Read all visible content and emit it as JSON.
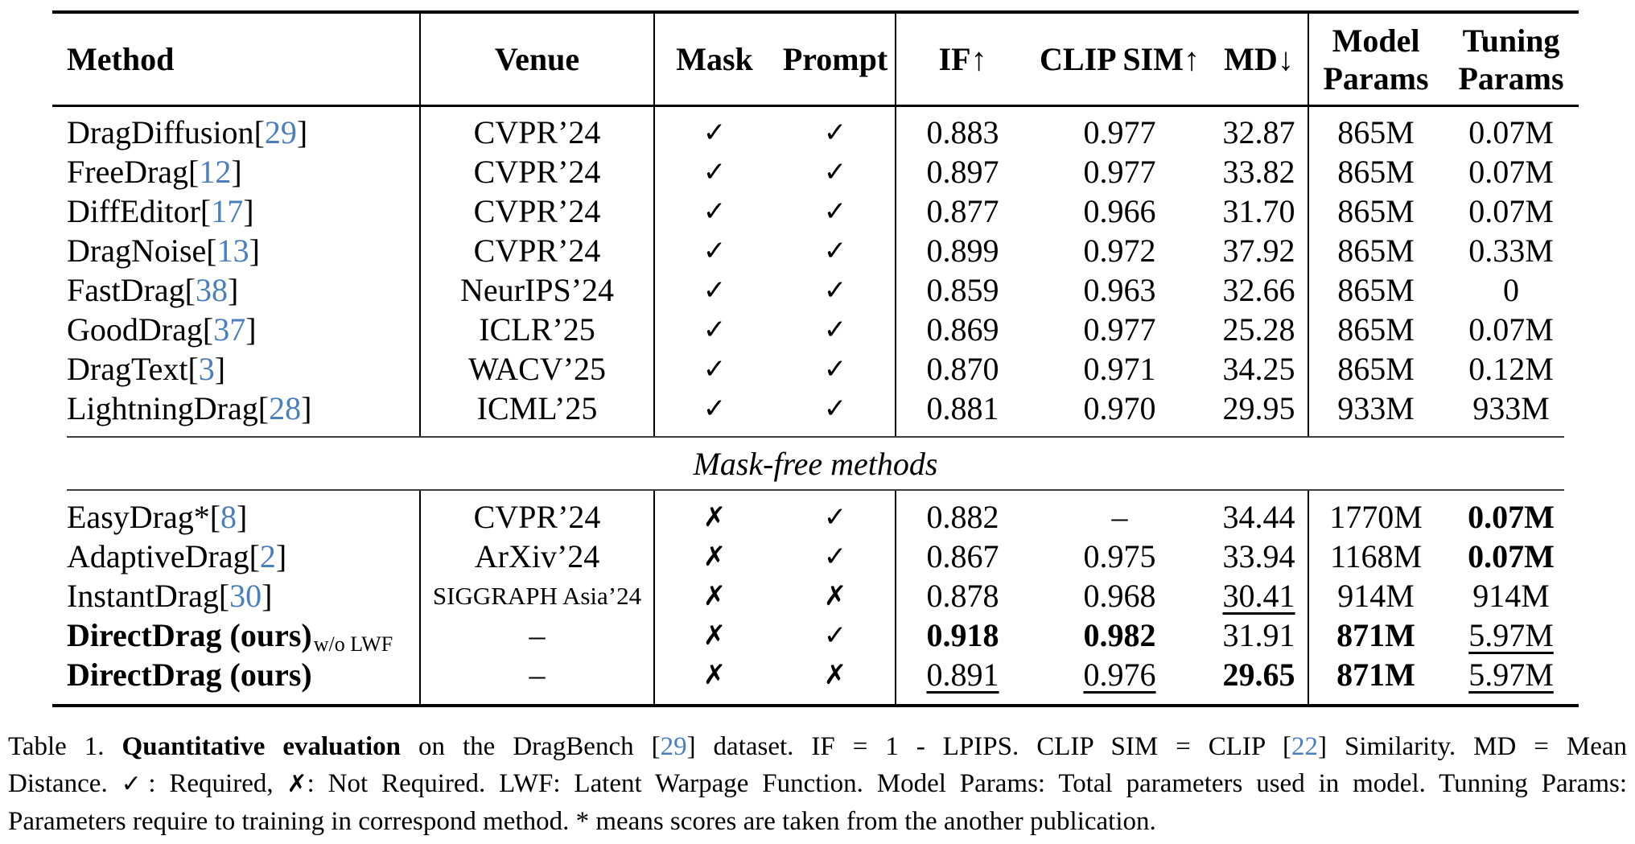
{
  "colors": {
    "citation_blue": "#4a7ebd",
    "text": "#000000",
    "rule": "#000000"
  },
  "table": {
    "header": {
      "method": "Method",
      "venue": "Venue",
      "mask": "Mask",
      "prompt": "Prompt",
      "if": "IF↑",
      "clip_sim": "CLIP SIM↑",
      "md": "MD↓",
      "model_line1": "Model",
      "model_line2": "Params",
      "tuning_line1": "Tuning",
      "tuning_line2": "Params"
    },
    "icons": {
      "check": "✓",
      "cross": "✗"
    },
    "section_label": "Mask-free methods",
    "rows_top": [
      {
        "method": "DragDiffusion",
        "cite": "29",
        "venue": "CVPR’24",
        "mask": "yes",
        "prompt": "yes",
        "metrics": [
          {
            "v": "0.883"
          },
          {
            "v": "0.977"
          },
          {
            "v": "32.87"
          },
          {
            "v": "865M"
          },
          {
            "v": "0.07M"
          }
        ]
      },
      {
        "method": "FreeDrag",
        "cite": "12",
        "venue": "CVPR’24",
        "mask": "yes",
        "prompt": "yes",
        "metrics": [
          {
            "v": "0.897"
          },
          {
            "v": "0.977"
          },
          {
            "v": "33.82"
          },
          {
            "v": "865M"
          },
          {
            "v": "0.07M"
          }
        ]
      },
      {
        "method": "DiffEditor",
        "cite": "17",
        "venue": "CVPR’24",
        "mask": "yes",
        "prompt": "yes",
        "metrics": [
          {
            "v": "0.877"
          },
          {
            "v": "0.966"
          },
          {
            "v": "31.70"
          },
          {
            "v": "865M"
          },
          {
            "v": "0.07M"
          }
        ]
      },
      {
        "method": "DragNoise",
        "cite": "13",
        "venue": "CVPR’24",
        "mask": "yes",
        "prompt": "yes",
        "metrics": [
          {
            "v": "0.899"
          },
          {
            "v": "0.972"
          },
          {
            "v": "37.92"
          },
          {
            "v": "865M"
          },
          {
            "v": "0.33M"
          }
        ]
      },
      {
        "method": "FastDrag",
        "cite": "38",
        "venue": "NeurIPS’24",
        "mask": "yes",
        "prompt": "yes",
        "metrics": [
          {
            "v": "0.859"
          },
          {
            "v": "0.963"
          },
          {
            "v": "32.66"
          },
          {
            "v": "865M"
          },
          {
            "v": "0"
          }
        ]
      },
      {
        "method": "GoodDrag",
        "cite": "37",
        "venue": "ICLR’25",
        "mask": "yes",
        "prompt": "yes",
        "metrics": [
          {
            "v": "0.869"
          },
          {
            "v": "0.977"
          },
          {
            "v": "25.28"
          },
          {
            "v": "865M"
          },
          {
            "v": "0.07M"
          }
        ]
      },
      {
        "method": "DragText",
        "cite": "3",
        "venue": "WACV’25",
        "mask": "yes",
        "prompt": "yes",
        "metrics": [
          {
            "v": "0.870"
          },
          {
            "v": "0.971"
          },
          {
            "v": "34.25"
          },
          {
            "v": "865M"
          },
          {
            "v": "0.12M"
          }
        ]
      },
      {
        "method": "LightningDrag",
        "cite": "28",
        "venue": "ICML’25",
        "mask": "yes",
        "prompt": "yes",
        "metrics": [
          {
            "v": "0.881"
          },
          {
            "v": "0.970"
          },
          {
            "v": "29.95"
          },
          {
            "v": "933M"
          },
          {
            "v": "933M"
          }
        ]
      }
    ],
    "rows_bottom": [
      {
        "method": "EasyDrag*",
        "cite": "8",
        "venue": "CVPR’24",
        "mask": "no",
        "prompt": "yes",
        "metrics": [
          {
            "v": "0.882"
          },
          {
            "v": "–"
          },
          {
            "v": "34.44"
          },
          {
            "v": "1770M"
          },
          {
            "v": "0.07M",
            "s": "b"
          }
        ]
      },
      {
        "method": "AdaptiveDrag",
        "cite": "2",
        "venue": "ArXiv’24",
        "mask": "no",
        "prompt": "yes",
        "metrics": [
          {
            "v": "0.867"
          },
          {
            "v": "0.975"
          },
          {
            "v": "33.94"
          },
          {
            "v": "1168M"
          },
          {
            "v": "0.07M",
            "s": "b"
          }
        ]
      },
      {
        "method": "InstantDrag",
        "cite": "30",
        "venue": "SIGGRAPH Asia’24",
        "venue_small": true,
        "mask": "no",
        "prompt": "no",
        "metrics": [
          {
            "v": "0.878"
          },
          {
            "v": "0.968"
          },
          {
            "v": "30.41",
            "s": "u"
          },
          {
            "v": "914M"
          },
          {
            "v": "914M"
          }
        ]
      },
      {
        "method": "DirectDrag (ours)",
        "method_bold": true,
        "method_sub": "w/o LWF",
        "venue": "–",
        "mask": "no",
        "prompt": "yes",
        "metrics": [
          {
            "v": "0.918",
            "s": "b"
          },
          {
            "v": "0.982",
            "s": "b"
          },
          {
            "v": "31.91"
          },
          {
            "v": "871M",
            "s": "b"
          },
          {
            "v": "5.97M",
            "s": "u"
          }
        ]
      },
      {
        "method": "DirectDrag (ours)",
        "method_bold": true,
        "venue": "–",
        "mask": "no",
        "prompt": "no",
        "metrics": [
          {
            "v": "0.891",
            "s": "u"
          },
          {
            "v": "0.976",
            "s": "u"
          },
          {
            "v": "29.65",
            "s": "b"
          },
          {
            "v": "871M",
            "s": "b"
          },
          {
            "v": "5.97M",
            "s": "u"
          }
        ]
      }
    ]
  },
  "caption": {
    "lines": [
      [
        {
          "t": "Table 1.  "
        },
        {
          "t": "Quantitative evaluation",
          "s": "b"
        },
        {
          "t": " on the DragBench ["
        },
        {
          "t": "29",
          "s": "c"
        },
        {
          "t": "] dataset.  IF = 1 - LPIPS. CLIP SIM = CLIP ["
        },
        {
          "t": "22",
          "s": "c"
        },
        {
          "t": "] Similarity.  MD = Mean"
        }
      ],
      [
        {
          "t": "Distance. "
        },
        {
          "t": "✓",
          "s": "chk"
        },
        {
          "t": ": Required, "
        },
        {
          "t": "✗",
          "s": "x"
        },
        {
          "t": ": Not Required. LWF: Latent Warpage Function. Model Params: Total parameters used in model. Tunning Params:"
        }
      ],
      [
        {
          "t": "Parameters require to training in correspond method. * means scores are taken from the another publication."
        }
      ]
    ]
  }
}
